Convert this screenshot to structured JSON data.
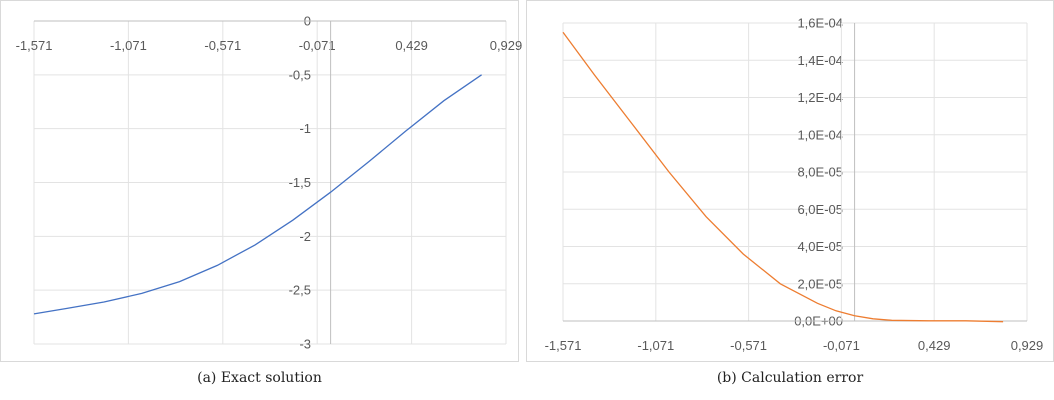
{
  "chart_data": [
    {
      "type": "line",
      "title": "",
      "xlabel": "",
      "ylabel": "",
      "x_ticks": [
        "-1,571",
        "-1,071",
        "-0,571",
        "-0,071",
        "0,429",
        "0,929"
      ],
      "y_ticks": [
        "0",
        "-0,5",
        "-1",
        "-1,5",
        "-2",
        "-2,5",
        "-3"
      ],
      "xlim": [
        -1.571,
        0.929
      ],
      "ylim": [
        -3,
        0
      ],
      "grid": true,
      "series": [
        {
          "color": "#4472c4",
          "x": [
            -1.571,
            -1.4,
            -1.2,
            -1.0,
            -0.8,
            -0.6,
            -0.4,
            -0.2,
            0.0,
            0.2,
            0.4,
            0.6,
            0.8
          ],
          "y": [
            -2.72,
            -2.67,
            -2.61,
            -2.53,
            -2.42,
            -2.27,
            -2.08,
            -1.85,
            -1.59,
            -1.31,
            -1.02,
            -0.74,
            -0.5
          ]
        }
      ],
      "caption": "(a) Exact solution"
    },
    {
      "type": "line",
      "title": "",
      "xlabel": "",
      "ylabel": "",
      "x_ticks": [
        "-1,571",
        "-1,071",
        "-0,571",
        "-0,071",
        "0,429",
        "0,929"
      ],
      "y_ticks": [
        "1,6E-04",
        "1,4E-04",
        "1,2E-04",
        "1,0E-04",
        "8,0E-05",
        "6,0E-05",
        "4,0E-05",
        "2,0E-05",
        "0,0E+00"
      ],
      "xlim": [
        -1.571,
        0.929
      ],
      "ylim": [
        0,
        0.00016
      ],
      "grid": true,
      "series": [
        {
          "color": "#ed7d31",
          "x": [
            -1.571,
            -1.4,
            -1.2,
            -1.0,
            -0.8,
            -0.6,
            -0.4,
            -0.2,
            -0.1,
            0.0,
            0.1,
            0.2,
            0.4,
            0.6,
            0.8
          ],
          "y": [
            0.000155,
            0.000132,
            0.000106,
            8e-05,
            5.6e-05,
            3.6e-05,
            2e-05,
            9.5e-06,
            5.5e-06,
            2.8e-06,
            1.2e-06,
            4e-07,
            1e-07,
            1e-07,
            -4e-07
          ]
        }
      ],
      "caption": "(b) Calculation error"
    }
  ]
}
